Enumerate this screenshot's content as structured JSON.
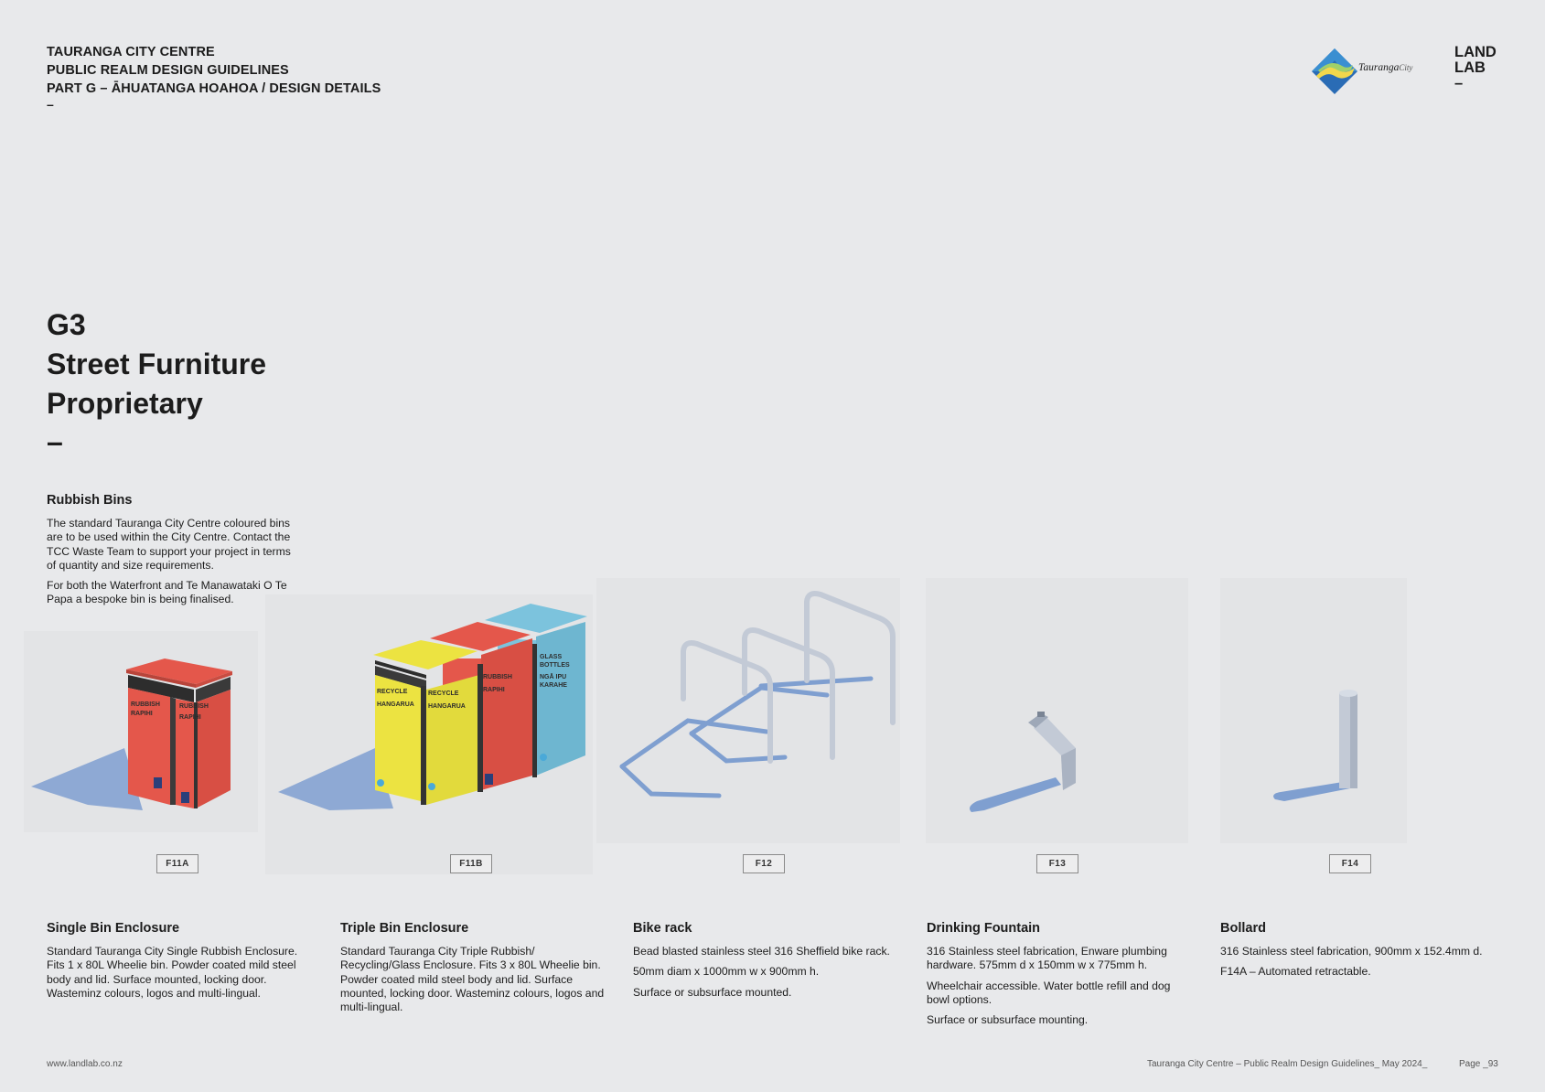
{
  "header": {
    "line1": "TAURANGA CITY CENTRE",
    "line2": "PUBLIC REALM DESIGN GUIDELINES",
    "line3": "PART G – ĀHUATANGA HOAHOA / DESIGN DETAILS",
    "dash": "–"
  },
  "logo": {
    "name": "Tauranga",
    "suffix": "City"
  },
  "brand": {
    "line1": "LAND",
    "line2": "LAB",
    "dash": "–"
  },
  "title": {
    "code": "G3",
    "line1": "Street Furniture",
    "line2": "Proprietary",
    "dash": "–"
  },
  "intro": {
    "heading": "Rubbish Bins",
    "para1": "The standard Tauranga City Centre coloured bins are to be used within the City Centre. Contact the TCC Waste Team to support your project in terms of quantity and size requirements.",
    "para2": "For both the Waterfront and Te Manawataki O Te Papa a bespoke bin is being finalised."
  },
  "bin_labels": {
    "rubbish": "RUBBISH",
    "rapihi": "RAPIHI",
    "recycle": "RECYCLE",
    "hangarua": "HANGARUA",
    "glass1": "GLASS",
    "glass2": "BOTTLES",
    "nga1": "NGĀ IPU",
    "nga2": "KARAHE"
  },
  "items": [
    {
      "tag": "F11A",
      "title": "Single Bin Enclosure",
      "paras": [
        "Standard Tauranga City Single Rubbish Enclosure. Fits 1 x 80L Wheelie bin. Powder coated mild steel body and lid. Surface mounted, locking door. Wasteminz colours, logos and multi-lingual."
      ]
    },
    {
      "tag": "F11B",
      "title": "Triple Bin Enclosure",
      "paras": [
        "Standard Tauranga City Triple Rubbish/ Recycling/Glass Enclosure. Fits 3 x 80L Wheelie bin. Powder coated mild steel body and lid. Surface mounted, locking door. Wasteminz colours, logos and multi-lingual."
      ]
    },
    {
      "tag": "F12",
      "title": "Bike rack",
      "paras": [
        "Bead blasted stainless steel 316 Sheffield bike rack.",
        "50mm diam x 1000mm w x 900mm h.",
        "Surface or subsurface mounted."
      ]
    },
    {
      "tag": "F13",
      "title": "Drinking Fountain",
      "paras": [
        "316 Stainless steel fabrication, Enware plumbing hardware. 575mm d x 150mm w x 775mm h.",
        "Wheelchair accessible. Water bottle refill and dog bowl options.",
        "Surface or subsurface mounting."
      ]
    },
    {
      "tag": "F14",
      "title": "Bollard",
      "paras": [
        "316 Stainless steel fabrication, 900mm x 152.4mm d.",
        "F14A – Automated retractable."
      ]
    }
  ],
  "footer": {
    "url": "www.landlab.co.nz",
    "doc": "Tauranga City Centre – Public Realm Design Guidelines_ May 2024_",
    "page": "Page _93"
  },
  "colors": {
    "bin_red": "#e4574b",
    "bin_yellow": "#ece341",
    "bin_blue": "#7cc3dd",
    "shadow": "#7f9fd0",
    "steel": "#bfc7d3"
  }
}
